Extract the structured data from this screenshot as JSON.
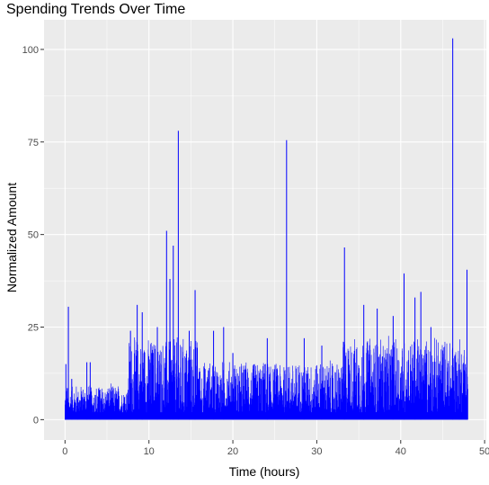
{
  "chart_data": {
    "type": "line",
    "title": "Spending Trends Over Time",
    "xlabel": "Time (hours)",
    "ylabel": "Normalized Amount",
    "xlim": [
      -2.5,
      50.2
    ],
    "ylim": [
      -5.5,
      108
    ],
    "x_ticks": [
      0,
      10,
      20,
      30,
      40,
      50
    ],
    "y_ticks": [
      0,
      25,
      50,
      75,
      100
    ],
    "x_tick_labels": [
      "0",
      "10",
      "20",
      "30",
      "40",
      "50"
    ],
    "y_tick_labels": [
      "0",
      "25",
      "50",
      "75",
      "100"
    ],
    "grid": true,
    "background": "#ebebeb",
    "grid_major_color": "#ffffff",
    "series": [
      {
        "color": "#0000ff",
        "baseline": 0,
        "x_range": [
          0,
          48
        ],
        "peaks": [
          {
            "x": 0.1,
            "y": 15
          },
          {
            "x": 0.4,
            "y": 30.5
          },
          {
            "x": 0.8,
            "y": 11
          },
          {
            "x": 1.5,
            "y": 6
          },
          {
            "x": 2.6,
            "y": 15.5
          },
          {
            "x": 3.0,
            "y": 15.5
          },
          {
            "x": 4.1,
            "y": 8
          },
          {
            "x": 5.5,
            "y": 7
          },
          {
            "x": 7.8,
            "y": 24
          },
          {
            "x": 8.6,
            "y": 31
          },
          {
            "x": 9.2,
            "y": 29
          },
          {
            "x": 11.0,
            "y": 25
          },
          {
            "x": 12.1,
            "y": 51
          },
          {
            "x": 12.5,
            "y": 38
          },
          {
            "x": 12.9,
            "y": 47
          },
          {
            "x": 13.5,
            "y": 78
          },
          {
            "x": 14.8,
            "y": 24
          },
          {
            "x": 15.5,
            "y": 35
          },
          {
            "x": 17.7,
            "y": 24
          },
          {
            "x": 18.9,
            "y": 25
          },
          {
            "x": 20.0,
            "y": 18
          },
          {
            "x": 24.1,
            "y": 22
          },
          {
            "x": 26.4,
            "y": 75.5
          },
          {
            "x": 28.5,
            "y": 22
          },
          {
            "x": 30.6,
            "y": 20
          },
          {
            "x": 33.3,
            "y": 46.5
          },
          {
            "x": 35.6,
            "y": 31
          },
          {
            "x": 37.2,
            "y": 30
          },
          {
            "x": 39.1,
            "y": 28
          },
          {
            "x": 40.4,
            "y": 39.5
          },
          {
            "x": 41.7,
            "y": 33
          },
          {
            "x": 42.4,
            "y": 34.5
          },
          {
            "x": 43.6,
            "y": 25
          },
          {
            "x": 46.2,
            "y": 103
          },
          {
            "x": 47.0,
            "y": 15
          },
          {
            "x": 47.7,
            "y": 15
          },
          {
            "x": 47.9,
            "y": 40.5
          }
        ],
        "noise_bands_hours_to_level": [
          {
            "from": 0,
            "to": 7.5,
            "level": 5
          },
          {
            "from": 7.5,
            "to": 16,
            "level": 13
          },
          {
            "from": 16,
            "to": 33,
            "level": 9
          },
          {
            "from": 33,
            "to": 48,
            "level": 13
          }
        ]
      }
    ]
  }
}
